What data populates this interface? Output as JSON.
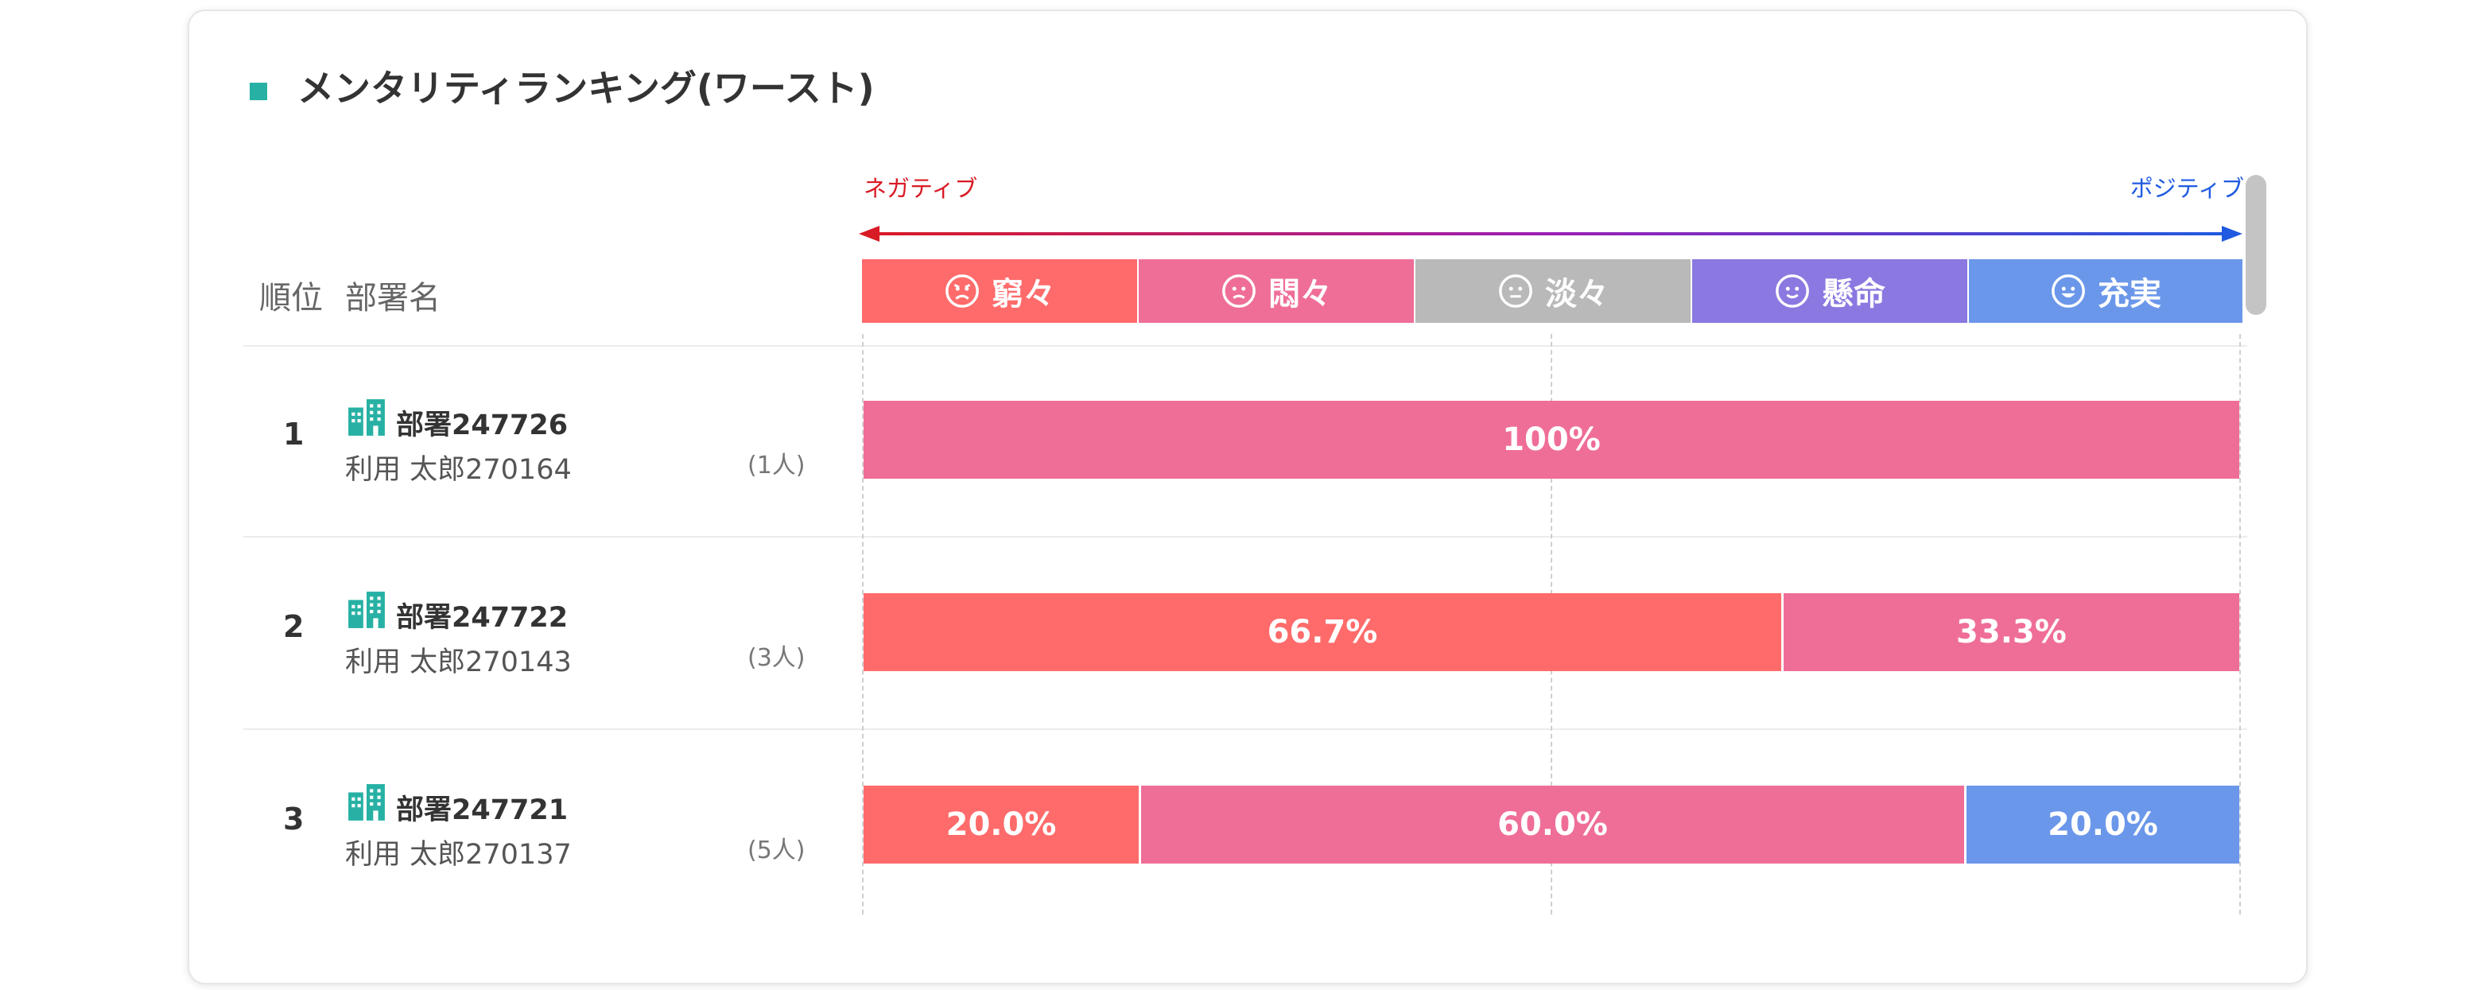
{
  "title": "メンタリティランキング(ワースト)",
  "scale": {
    "negative_label": "ネガティブ",
    "positive_label": "ポジティブ"
  },
  "header": {
    "rank": "順位",
    "dept": "部署名"
  },
  "legend": [
    {
      "label": "窮々",
      "color": "#ff6b6b",
      "icon": "angry-face-icon"
    },
    {
      "label": "悶々",
      "color": "#ef6e97",
      "icon": "frowning-face-icon"
    },
    {
      "label": "淡々",
      "color": "#b9b9b9",
      "icon": "neutral-face-icon"
    },
    {
      "label": "懸命",
      "color": "#8b78e0",
      "icon": "smiling-face-icon"
    },
    {
      "label": "充実",
      "color": "#6b97ea",
      "icon": "happy-face-icon"
    }
  ],
  "rows": [
    {
      "rank": "1",
      "dept": "部署247726",
      "user": "利用 太郎270164",
      "count": "(1人)",
      "segments": [
        {
          "category": "悶々",
          "value": 100,
          "label": "100%"
        }
      ]
    },
    {
      "rank": "2",
      "dept": "部署247722",
      "user": "利用 太郎270143",
      "count": "(3人)",
      "segments": [
        {
          "category": "窮々",
          "value": 66.7,
          "label": "66.7%"
        },
        {
          "category": "悶々",
          "value": 33.3,
          "label": "33.3%"
        }
      ]
    },
    {
      "rank": "3",
      "dept": "部署247721",
      "user": "利用 太郎270137",
      "count": "(5人)",
      "segments": [
        {
          "category": "窮々",
          "value": 20.0,
          "label": "20.0%"
        },
        {
          "category": "悶々",
          "value": 60.0,
          "label": "60.0%"
        },
        {
          "category": "充実",
          "value": 20.0,
          "label": "20.0%"
        }
      ]
    }
  ]
}
